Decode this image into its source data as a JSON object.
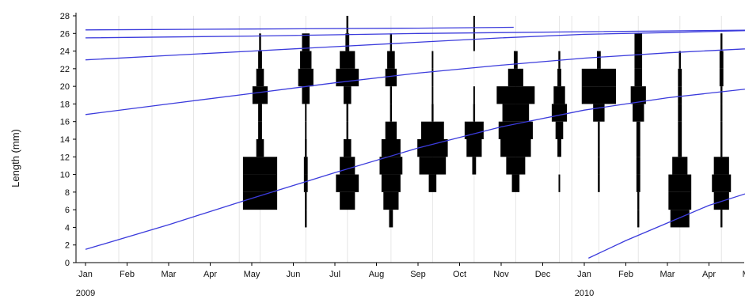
{
  "chart_data": {
    "type": "bar",
    "subtype": "length-frequency histograms with growth curves",
    "xlabel": "",
    "ylabel": "Length (mm)",
    "ylim": [
      0,
      28
    ],
    "yticks": [
      0,
      2,
      4,
      6,
      8,
      10,
      12,
      14,
      16,
      18,
      20,
      22,
      24,
      26,
      28
    ],
    "x_months": [
      "Jan",
      "Feb",
      "Mar",
      "Apr",
      "May",
      "Jun",
      "Jul",
      "Aug",
      "Sep",
      "Oct",
      "Nov",
      "Dec",
      "Jan",
      "Feb",
      "Mar",
      "Apr",
      "May"
    ],
    "x_years": [
      {
        "label": "2009",
        "month_index": 0
      },
      {
        "label": "2010",
        "month_index": 12
      }
    ],
    "xlim_months": [
      0,
      16.5
    ],
    "grid": "vertical lines at sample dates",
    "colors": {
      "histogram": "#000000",
      "growth_curve": "#3b3bdc",
      "grid": "#e6e6e6",
      "axis": "#000000"
    },
    "samples": [
      {
        "t": 4.2,
        "bins": [
          [
            7,
            0.9
          ],
          [
            9,
            0.9
          ],
          [
            11,
            0.9
          ],
          [
            13,
            0.2
          ],
          [
            15,
            0.1
          ],
          [
            17,
            0.1
          ],
          [
            19,
            0.4
          ],
          [
            21,
            0.2
          ],
          [
            23,
            0.1
          ],
          [
            25,
            0.05
          ]
        ]
      },
      {
        "t": 5.3,
        "bins": [
          [
            5,
            0.05
          ],
          [
            7,
            0.05
          ],
          [
            9,
            0.1
          ],
          [
            11,
            0.1
          ],
          [
            13,
            0.05
          ],
          [
            15,
            0.02
          ],
          [
            17,
            0.02
          ],
          [
            19,
            0.2
          ],
          [
            21,
            0.4
          ],
          [
            23,
            0.3
          ],
          [
            25,
            0.2
          ]
        ]
      },
      {
        "t": 6.3,
        "bins": [
          [
            7,
            0.4
          ],
          [
            9,
            0.6
          ],
          [
            11,
            0.4
          ],
          [
            13,
            0.2
          ],
          [
            15,
            0.05
          ],
          [
            17,
            0.05
          ],
          [
            19,
            0.2
          ],
          [
            21,
            0.6
          ],
          [
            23,
            0.4
          ],
          [
            25,
            0.1
          ],
          [
            27,
            0.05
          ]
        ]
      },
      {
        "t": 7.35,
        "bins": [
          [
            5,
            0.1
          ],
          [
            7,
            0.4
          ],
          [
            9,
            0.5
          ],
          [
            11,
            0.6
          ],
          [
            13,
            0.5
          ],
          [
            15,
            0.3
          ],
          [
            17,
            0.05
          ],
          [
            19,
            0.05
          ],
          [
            21,
            0.3
          ],
          [
            23,
            0.2
          ],
          [
            25,
            0.05
          ]
        ]
      },
      {
        "t": 8.35,
        "bins": [
          [
            9,
            0.2
          ],
          [
            11,
            0.7
          ],
          [
            13,
            0.8
          ],
          [
            15,
            0.6
          ],
          [
            17,
            0.05
          ],
          [
            19,
            0.02
          ],
          [
            21,
            0.02
          ],
          [
            23,
            0.02
          ]
        ]
      },
      {
        "t": 9.35,
        "bins": [
          [
            11,
            0.1
          ],
          [
            13,
            0.4
          ],
          [
            15,
            0.5
          ],
          [
            17,
            0.05
          ],
          [
            19,
            0.02
          ],
          [
            25,
            0.02
          ],
          [
            27,
            0.02
          ]
        ]
      },
      {
        "t": 10.35,
        "bins": [
          [
            9,
            0.2
          ],
          [
            11,
            0.5
          ],
          [
            13,
            0.8
          ],
          [
            15,
            0.9
          ],
          [
            17,
            0.7
          ],
          [
            19,
            1.0
          ],
          [
            21,
            0.4
          ],
          [
            23,
            0.1
          ]
        ]
      },
      {
        "t": 11.4,
        "bins": [
          [
            9,
            0.02
          ],
          [
            13,
            0.1
          ],
          [
            15,
            0.2
          ],
          [
            17,
            0.4
          ],
          [
            19,
            0.3
          ],
          [
            21,
            0.1
          ],
          [
            23,
            0.05
          ]
        ]
      },
      {
        "t": 12.35,
        "bins": [
          [
            9,
            0.05
          ],
          [
            11,
            0.05
          ],
          [
            13,
            0.05
          ],
          [
            15,
            0.05
          ],
          [
            17,
            0.3
          ],
          [
            19,
            0.9
          ],
          [
            21,
            0.9
          ],
          [
            23,
            0.1
          ]
        ]
      },
      {
        "t": 13.3,
        "bins": [
          [
            5,
            0.05
          ],
          [
            7,
            0.05
          ],
          [
            9,
            0.1
          ],
          [
            11,
            0.1
          ],
          [
            13,
            0.1
          ],
          [
            15,
            0.1
          ],
          [
            17,
            0.3
          ],
          [
            19,
            0.4
          ],
          [
            21,
            0.2
          ],
          [
            23,
            0.2
          ],
          [
            25,
            0.2
          ]
        ]
      },
      {
        "t": 14.3,
        "bins": [
          [
            5,
            0.5
          ],
          [
            7,
            0.6
          ],
          [
            9,
            0.6
          ],
          [
            11,
            0.4
          ],
          [
            13,
            0.1
          ],
          [
            15,
            0.1
          ],
          [
            17,
            0.1
          ],
          [
            19,
            0.1
          ],
          [
            21,
            0.1
          ],
          [
            23,
            0.05
          ]
        ]
      },
      {
        "t": 15.3,
        "bins": [
          [
            5,
            0.05
          ],
          [
            7,
            0.4
          ],
          [
            9,
            0.5
          ],
          [
            11,
            0.4
          ],
          [
            13,
            0.05
          ],
          [
            15,
            0.05
          ],
          [
            17,
            0.05
          ],
          [
            19,
            0.05
          ],
          [
            21,
            0.1
          ],
          [
            23,
            0.1
          ],
          [
            25,
            0.05
          ]
        ]
      }
    ],
    "growth_curves": [
      {
        "points": [
          [
            0,
            1.5
          ],
          [
            2,
            4.3
          ],
          [
            4,
            7.3
          ],
          [
            6,
            10.2
          ],
          [
            8,
            13.0
          ],
          [
            10,
            15.4
          ],
          [
            12,
            17.3
          ],
          [
            14,
            18.7
          ],
          [
            16.5,
            20.0
          ]
        ]
      },
      {
        "points": [
          [
            0,
            16.8
          ],
          [
            2,
            18.0
          ],
          [
            4,
            19.2
          ],
          [
            6,
            20.4
          ],
          [
            8,
            21.5
          ],
          [
            10,
            22.4
          ],
          [
            12,
            23.2
          ],
          [
            14,
            23.8
          ],
          [
            16.5,
            24.4
          ]
        ]
      },
      {
        "points": [
          [
            0,
            23.0
          ],
          [
            2,
            23.5
          ],
          [
            4,
            24.0
          ],
          [
            6,
            24.5
          ],
          [
            8,
            25.0
          ],
          [
            10,
            25.5
          ],
          [
            12,
            25.9
          ],
          [
            14,
            26.1
          ],
          [
            16.5,
            26.4
          ]
        ]
      },
      {
        "points": [
          [
            0,
            25.5
          ],
          [
            4,
            25.7
          ],
          [
            8,
            26.0
          ],
          [
            12,
            26.2
          ],
          [
            16.5,
            26.4
          ]
        ]
      },
      {
        "points": [
          [
            0,
            26.4
          ],
          [
            4,
            26.5
          ],
          [
            8,
            26.6
          ],
          [
            10.3,
            26.7
          ]
        ]
      },
      {
        "points": [
          [
            12.1,
            0.5
          ],
          [
            13,
            2.5
          ],
          [
            14,
            4.5
          ],
          [
            15,
            6.5
          ],
          [
            16,
            8.0
          ],
          [
            16.5,
            8.8
          ]
        ]
      }
    ]
  }
}
